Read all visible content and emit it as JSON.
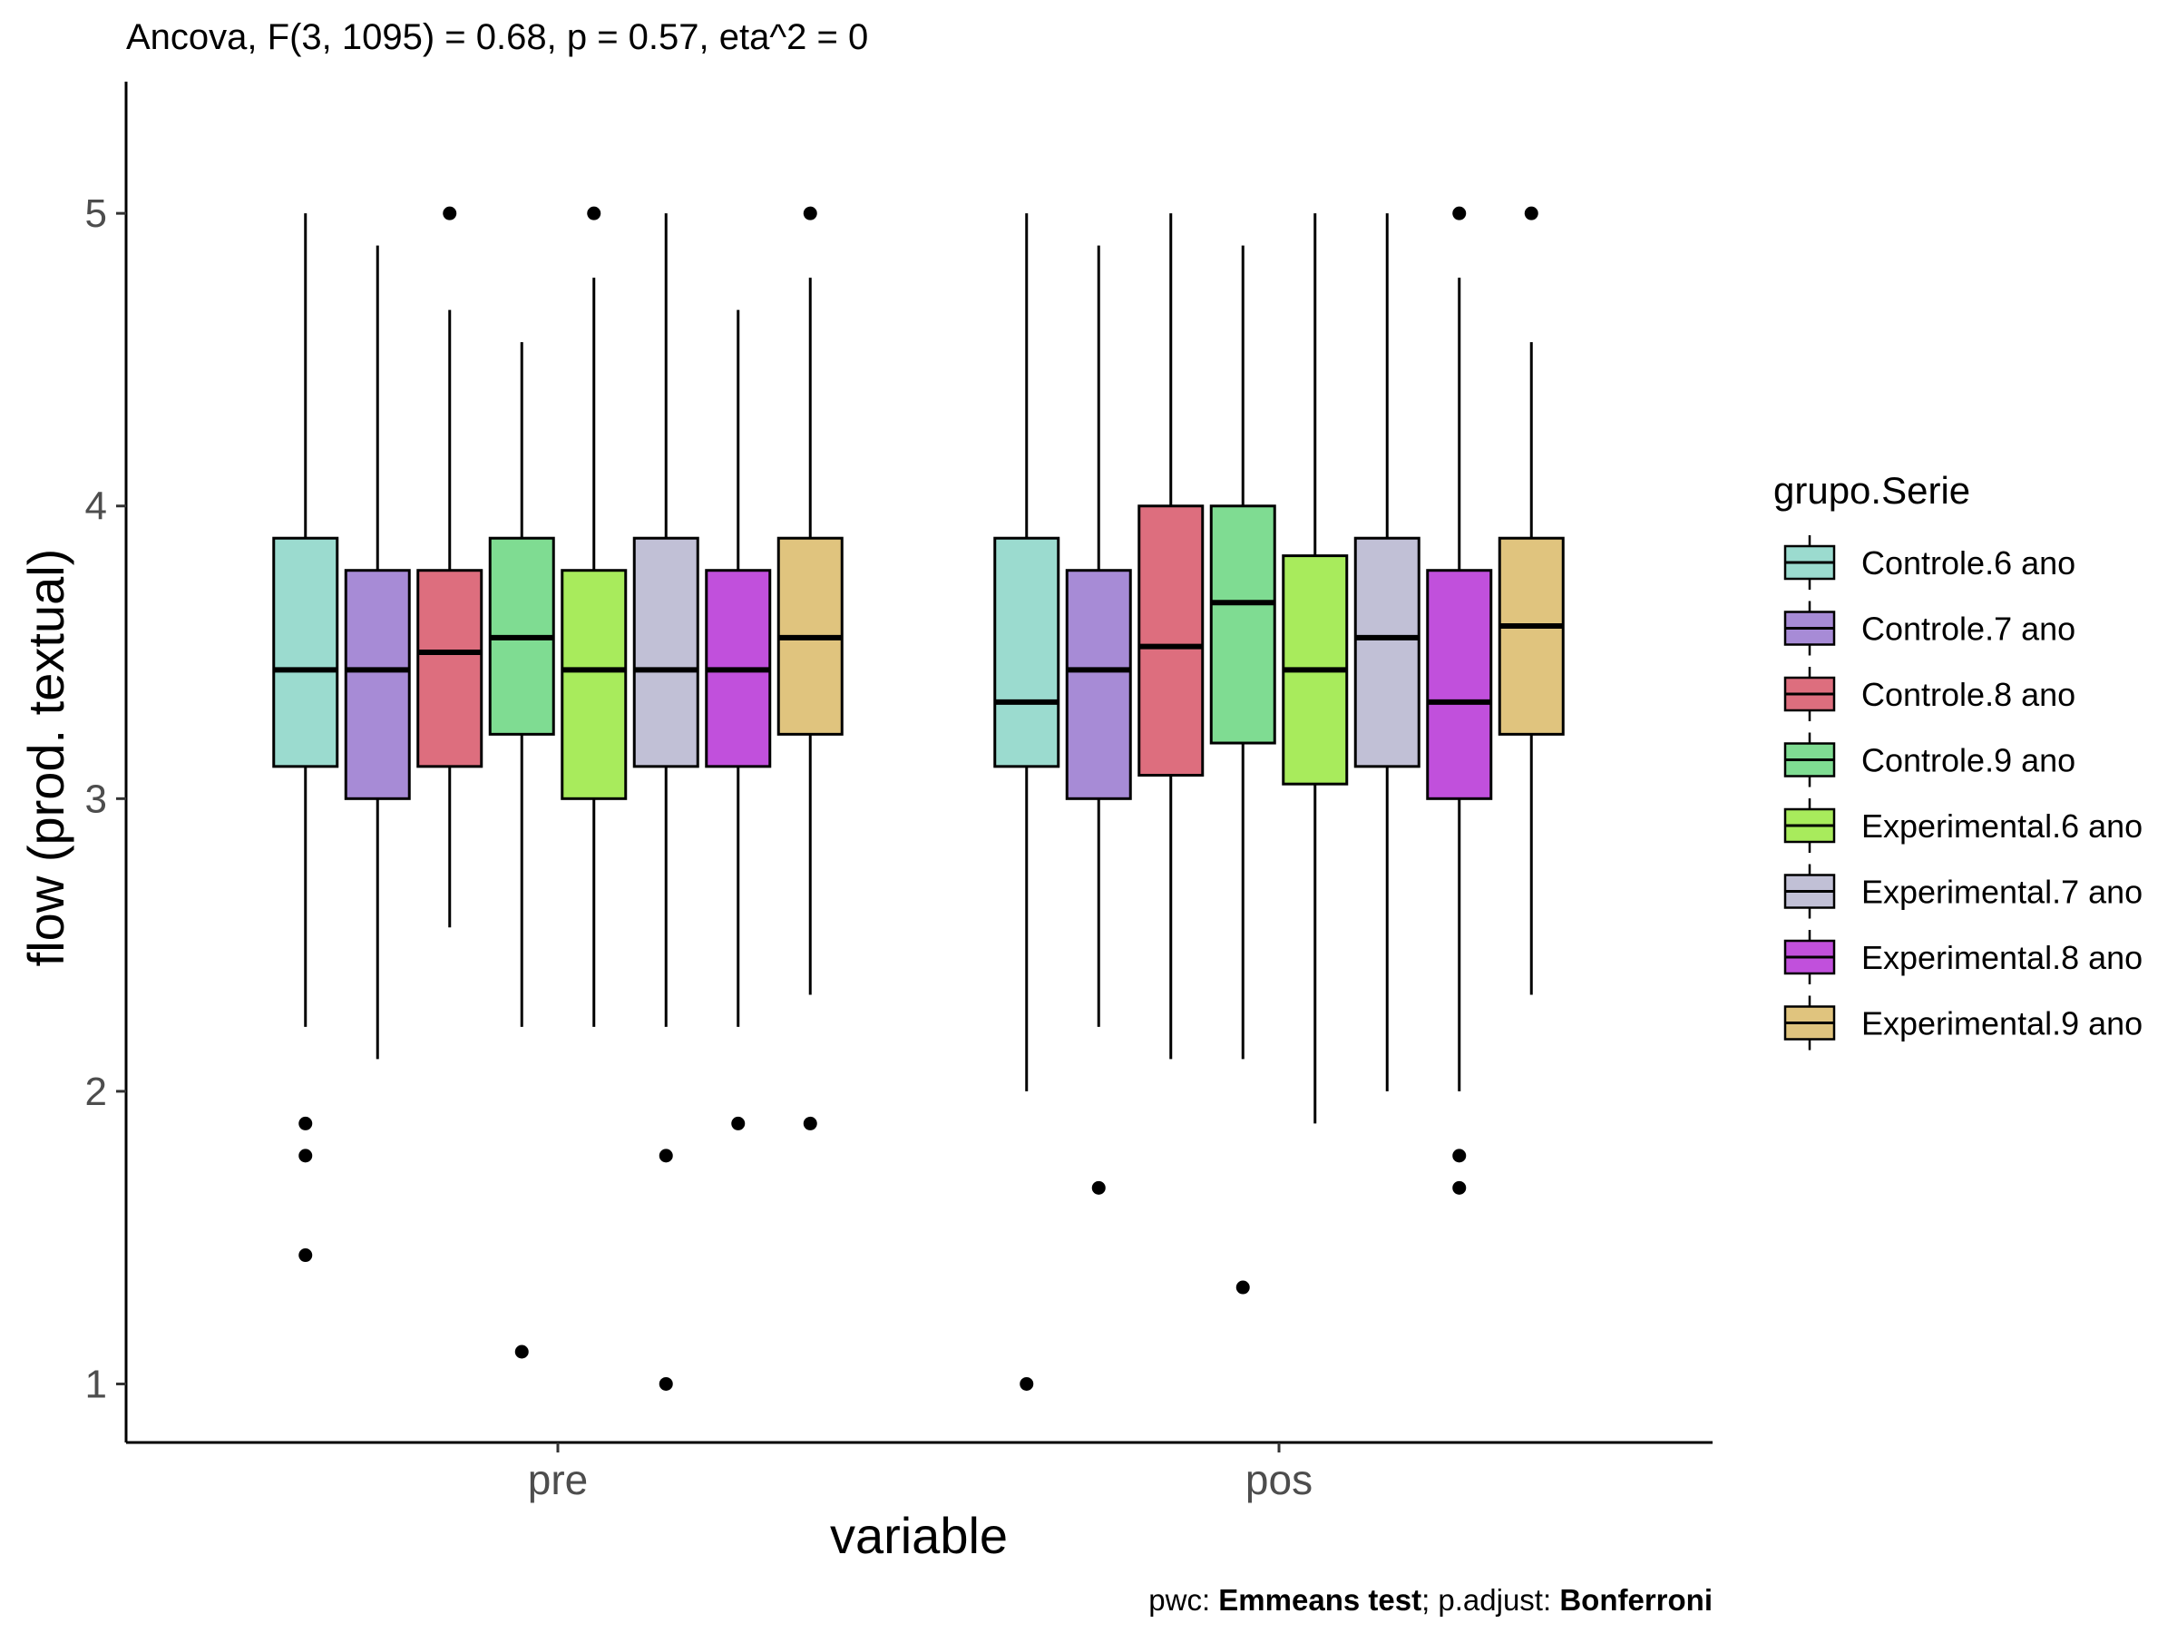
{
  "chart_data": {
    "type": "boxplot",
    "title": "Ancova, F(3, 1095) = 0.68, p = 0.57, eta^2 = 0",
    "xlabel": "variable",
    "ylabel": "flow (prod. textual)",
    "ylim": [
      0.8,
      5.45
    ],
    "yticks": [
      "1",
      "2",
      "3",
      "4",
      "5"
    ],
    "categories": [
      "pre",
      "pos"
    ],
    "grid": false,
    "legend": {
      "title": "grupo.Serie",
      "position": "right"
    },
    "caption": {
      "prefix": "pwc: ",
      "method": "Emmeans test",
      "sep": "; p.adjust: ",
      "adjust": "Bonferroni"
    },
    "series": [
      {
        "name": "Controle.6 ano",
        "color": "#9bdbcf",
        "boxes": [
          {
            "min": 2.22,
            "q1": 3.11,
            "median": 3.44,
            "q3": 3.89,
            "max": 5.0,
            "outliers": [
              1.89,
              1.78,
              1.44
            ]
          },
          {
            "min": 2.0,
            "q1": 3.11,
            "median": 3.33,
            "q3": 3.89,
            "max": 5.0,
            "outliers": [
              1.0
            ]
          }
        ]
      },
      {
        "name": "Controle.7 ano",
        "color": "#a78bd6",
        "boxes": [
          {
            "min": 2.11,
            "q1": 3.0,
            "median": 3.44,
            "q3": 3.78,
            "max": 4.89,
            "outliers": []
          },
          {
            "min": 2.22,
            "q1": 3.0,
            "median": 3.44,
            "q3": 3.78,
            "max": 4.89,
            "outliers": [
              1.67
            ]
          }
        ]
      },
      {
        "name": "Controle.8 ano",
        "color": "#dd6e7e",
        "boxes": [
          {
            "min": 2.56,
            "q1": 3.11,
            "median": 3.5,
            "q3": 3.78,
            "max": 4.67,
            "outliers": [
              5.0
            ]
          },
          {
            "min": 2.11,
            "q1": 3.08,
            "median": 3.52,
            "q3": 4.0,
            "max": 5.0,
            "outliers": []
          }
        ]
      },
      {
        "name": "Controle.9 ano",
        "color": "#7fdc92",
        "boxes": [
          {
            "min": 2.22,
            "q1": 3.22,
            "median": 3.55,
            "q3": 3.89,
            "max": 4.56,
            "outliers": [
              1.11
            ]
          },
          {
            "min": 2.11,
            "q1": 3.19,
            "median": 3.67,
            "q3": 4.0,
            "max": 4.89,
            "outliers": [
              1.33
            ]
          }
        ]
      },
      {
        "name": "Experimental.6 ano",
        "color": "#a8eb5c",
        "boxes": [
          {
            "min": 2.22,
            "q1": 3.0,
            "median": 3.44,
            "q3": 3.78,
            "max": 4.78,
            "outliers": [
              5.0
            ]
          },
          {
            "min": 1.89,
            "q1": 3.05,
            "median": 3.44,
            "q3": 3.83,
            "max": 5.0,
            "outliers": []
          }
        ]
      },
      {
        "name": "Experimental.7 ano",
        "color": "#c1c0d6",
        "boxes": [
          {
            "min": 2.22,
            "q1": 3.11,
            "median": 3.44,
            "q3": 3.89,
            "max": 5.0,
            "outliers": [
              1.78,
              1.0
            ]
          },
          {
            "min": 2.0,
            "q1": 3.11,
            "median": 3.55,
            "q3": 3.89,
            "max": 5.0,
            "outliers": []
          }
        ]
      },
      {
        "name": "Experimental.8 ano",
        "color": "#c150dc",
        "boxes": [
          {
            "min": 2.22,
            "q1": 3.11,
            "median": 3.44,
            "q3": 3.78,
            "max": 4.67,
            "outliers": [
              1.89
            ]
          },
          {
            "min": 2.0,
            "q1": 3.0,
            "median": 3.33,
            "q3": 3.78,
            "max": 4.78,
            "outliers": [
              5.0,
              1.78,
              1.67
            ]
          }
        ]
      },
      {
        "name": "Experimental.9 ano",
        "color": "#e0c47e",
        "boxes": [
          {
            "min": 2.33,
            "q1": 3.22,
            "median": 3.55,
            "q3": 3.89,
            "max": 4.78,
            "outliers": [
              5.0,
              1.89
            ]
          },
          {
            "min": 2.33,
            "q1": 3.22,
            "median": 3.59,
            "q3": 3.89,
            "max": 4.56,
            "outliers": [
              5.0
            ]
          }
        ]
      }
    ]
  }
}
